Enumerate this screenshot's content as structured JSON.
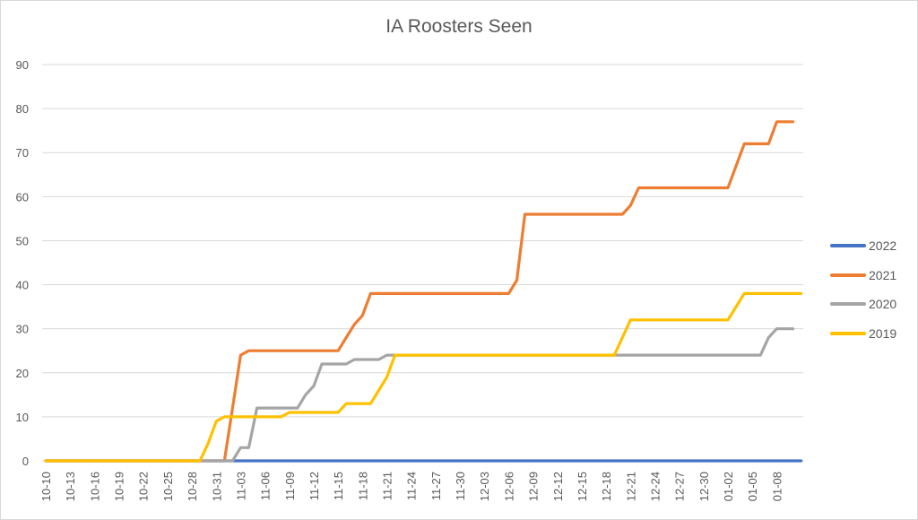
{
  "chart_data": {
    "type": "line",
    "title": "IA Roosters Seen",
    "xlabel": "",
    "ylabel": "",
    "ylim": [
      0,
      90
    ],
    "yticks": [
      0,
      10,
      20,
      30,
      40,
      50,
      60,
      70,
      80,
      90
    ],
    "grid": true,
    "legend_position": "right",
    "x_tick_labels": [
      "10-10",
      "10-13",
      "10-16",
      "10-19",
      "10-22",
      "10-25",
      "10-28",
      "10-31",
      "11-03",
      "11-06",
      "11-09",
      "11-12",
      "11-15",
      "11-18",
      "11-21",
      "11-24",
      "11-27",
      "11-30",
      "12-03",
      "12-06",
      "12-09",
      "12-12",
      "12-15",
      "12-18",
      "12-21",
      "12-24",
      "12-27",
      "12-30",
      "01-02",
      "01-05",
      "01-08"
    ],
    "x_start": "10-10",
    "x_step_days": 1,
    "series": [
      {
        "name": "2022",
        "color": "#4472C4",
        "values": [
          0,
          0,
          0,
          0,
          0,
          0,
          0,
          0,
          0,
          0,
          0,
          0,
          0,
          0,
          0,
          0,
          0,
          0,
          0,
          0,
          0,
          0,
          0,
          0,
          0,
          0,
          0,
          0,
          0,
          0,
          0,
          0,
          0,
          0,
          0,
          0,
          0,
          0,
          0,
          0,
          0,
          0,
          0,
          0,
          0,
          0,
          0,
          0,
          0,
          0,
          0,
          0,
          0,
          0,
          0,
          0,
          0,
          0,
          0,
          0,
          0,
          0,
          0,
          0,
          0,
          0,
          0,
          0,
          0,
          0,
          0,
          0,
          0,
          0,
          0,
          0,
          0,
          0,
          0,
          0,
          0,
          0,
          0,
          0,
          0,
          0,
          0,
          0,
          0,
          0,
          0,
          0,
          0,
          0
        ]
      },
      {
        "name": "2021",
        "color": "#ED7D31",
        "values": [
          0,
          0,
          0,
          0,
          0,
          0,
          0,
          0,
          0,
          0,
          0,
          0,
          0,
          0,
          0,
          0,
          0,
          0,
          0,
          0,
          0,
          0,
          0,
          12,
          24,
          25,
          25,
          25,
          25,
          25,
          25,
          25,
          25,
          25,
          25,
          25,
          25,
          28,
          31,
          33,
          38,
          38,
          38,
          38,
          38,
          38,
          38,
          38,
          38,
          38,
          38,
          38,
          38,
          38,
          38,
          38,
          38,
          38,
          41,
          56,
          56,
          56,
          56,
          56,
          56,
          56,
          56,
          56,
          56,
          56,
          56,
          56,
          58,
          62,
          62,
          62,
          62,
          62,
          62,
          62,
          62,
          62,
          62,
          62,
          62,
          67,
          72,
          72,
          72,
          72,
          77,
          77,
          77
        ]
      },
      {
        "name": "2020",
        "color": "#A5A5A5",
        "values": [
          0,
          0,
          0,
          0,
          0,
          0,
          0,
          0,
          0,
          0,
          0,
          0,
          0,
          0,
          0,
          0,
          0,
          0,
          0,
          0,
          0,
          0,
          0,
          0,
          3,
          3,
          12,
          12,
          12,
          12,
          12,
          12,
          15,
          17,
          22,
          22,
          22,
          22,
          23,
          23,
          23,
          23,
          24,
          24,
          24,
          24,
          24,
          24,
          24,
          24,
          24,
          24,
          24,
          24,
          24,
          24,
          24,
          24,
          24,
          24,
          24,
          24,
          24,
          24,
          24,
          24,
          24,
          24,
          24,
          24,
          24,
          24,
          24,
          24,
          24,
          24,
          24,
          24,
          24,
          24,
          24,
          24,
          24,
          24,
          24,
          24,
          24,
          24,
          24,
          28,
          30,
          30,
          30
        ]
      },
      {
        "name": "2019",
        "color": "#FFC000",
        "values": [
          0,
          0,
          0,
          0,
          0,
          0,
          0,
          0,
          0,
          0,
          0,
          0,
          0,
          0,
          0,
          0,
          0,
          0,
          0,
          0,
          4,
          9,
          10,
          10,
          10,
          10,
          10,
          10,
          10,
          10,
          11,
          11,
          11,
          11,
          11,
          11,
          11,
          13,
          13,
          13,
          13,
          16,
          19,
          24,
          24,
          24,
          24,
          24,
          24,
          24,
          24,
          24,
          24,
          24,
          24,
          24,
          24,
          24,
          24,
          24,
          24,
          24,
          24,
          24,
          24,
          24,
          24,
          24,
          24,
          24,
          24,
          28,
          32,
          32,
          32,
          32,
          32,
          32,
          32,
          32,
          32,
          32,
          32,
          32,
          32,
          35,
          38,
          38,
          38,
          38,
          38,
          38,
          38,
          38
        ]
      }
    ]
  },
  "legend": {
    "items": [
      {
        "label": "2022",
        "color": "#4472C4"
      },
      {
        "label": "2021",
        "color": "#ED7D31"
      },
      {
        "label": "2020",
        "color": "#A5A5A5"
      },
      {
        "label": "2019",
        "color": "#FFC000"
      }
    ]
  }
}
